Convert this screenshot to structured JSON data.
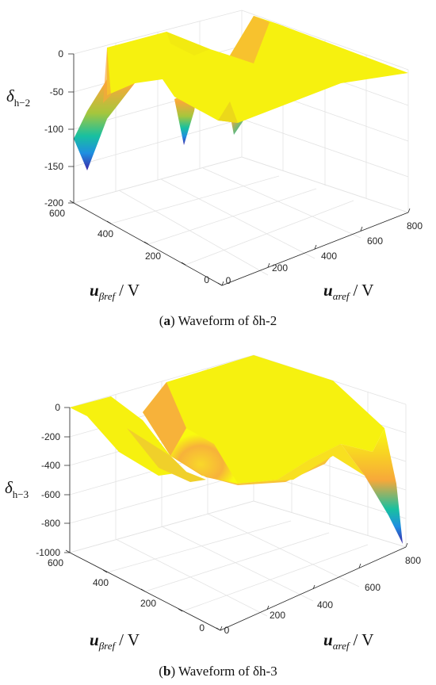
{
  "chart_data": [
    {
      "type": "surface",
      "panel_label": "a",
      "caption_text": "Waveform of δh-2",
      "zlabel": {
        "symbol": "δ",
        "subscript": "h−2"
      },
      "xlabel": {
        "symbol": "u",
        "subscript": "αref",
        "unit": "/ V"
      },
      "ylabel": {
        "symbol": "u",
        "subscript": "βref",
        "unit": "/ V"
      },
      "x_ticks": [
        "0",
        "200",
        "400",
        "600",
        "800"
      ],
      "y_ticks": [
        "0",
        "200",
        "400",
        "600"
      ],
      "z_ticks": [
        "-200",
        "-150",
        "-100",
        "-50",
        "0"
      ],
      "xlim": [
        0,
        800
      ],
      "ylim": [
        0,
        600
      ],
      "zlim": [
        -200,
        0
      ],
      "colormap": [
        "#3d26a8",
        "#1f8fe0",
        "#18c0a0",
        "#a6c63c",
        "#f7a83a",
        "#f9fb0e"
      ]
    },
    {
      "type": "surface",
      "panel_label": "b",
      "caption_text": "Waveform of δh-3",
      "zlabel": {
        "symbol": "δ",
        "subscript": "h−3"
      },
      "xlabel": {
        "symbol": "u",
        "subscript": "αref",
        "unit": "/ V"
      },
      "ylabel": {
        "symbol": "u",
        "subscript": "βref",
        "unit": "/ V"
      },
      "x_ticks": [
        "0",
        "200",
        "400",
        "600",
        "800"
      ],
      "y_ticks": [
        "0",
        "200",
        "400",
        "600"
      ],
      "z_ticks": [
        "-1000",
        "-800",
        "-600",
        "-400",
        "-200",
        "0"
      ],
      "xlim": [
        0,
        800
      ],
      "ylim": [
        0,
        600
      ],
      "zlim": [
        -1000,
        0
      ],
      "colormap": [
        "#3d26a8",
        "#1f8fe0",
        "#18c0a0",
        "#a6c63c",
        "#f7a83a",
        "#f9fb0e"
      ]
    }
  ]
}
